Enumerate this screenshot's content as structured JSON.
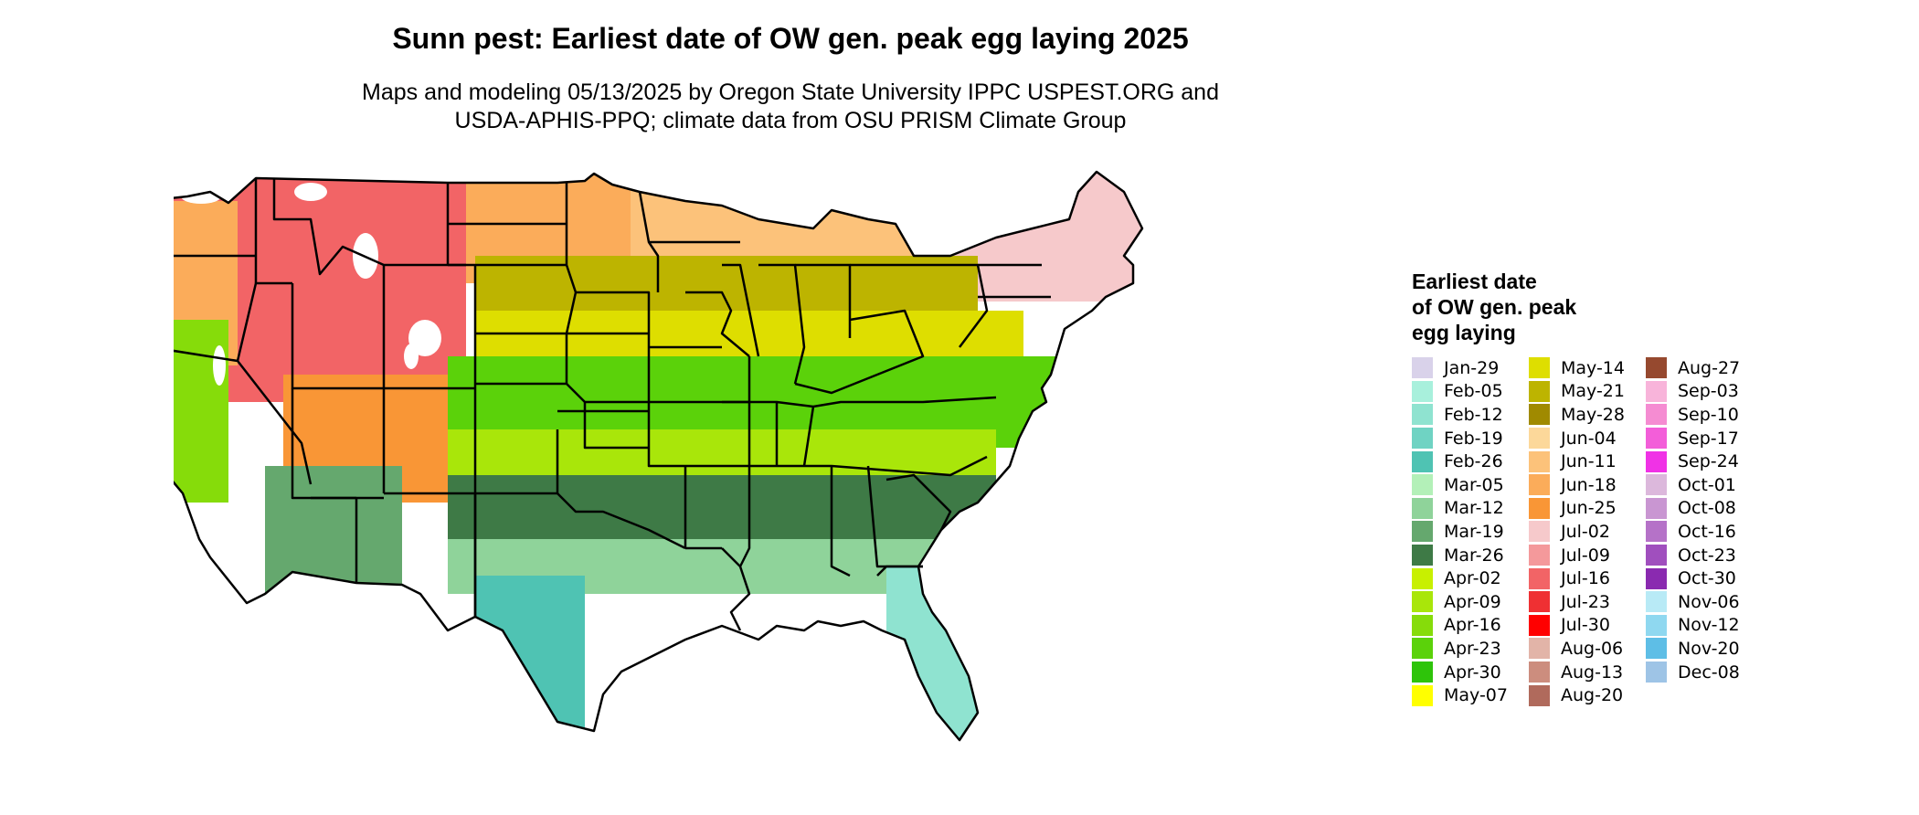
{
  "title": "Sunn pest: Earliest date of OW gen. peak egg laying 2025",
  "subtitle": {
    "line1": "Maps and modeling 05/13/2025 by Oregon State University IPPC USPEST.ORG and",
    "line2": "USDA-APHIS-PPQ; climate data from OSU PRISM Climate Group"
  },
  "legend": {
    "title_lines": [
      "Earliest date",
      "of OW gen. peak",
      "egg laying"
    ],
    "columns": [
      [
        {
          "label": "Jan-29",
          "color": "#d9d2ea"
        },
        {
          "label": "Feb-05",
          "color": "#a8f0dc"
        },
        {
          "label": "Feb-12",
          "color": "#8fe3d0"
        },
        {
          "label": "Feb-19",
          "color": "#6fd3c3"
        },
        {
          "label": "Feb-26",
          "color": "#4fc3b3"
        },
        {
          "label": "Mar-05",
          "color": "#b3f0b8"
        },
        {
          "label": "Mar-12",
          "color": "#8fd39a"
        },
        {
          "label": "Mar-19",
          "color": "#65a86e"
        },
        {
          "label": "Mar-26",
          "color": "#3e7a46"
        },
        {
          "label": "Apr-02",
          "color": "#c8f000"
        },
        {
          "label": "Apr-09",
          "color": "#a9e60a"
        },
        {
          "label": "Apr-16",
          "color": "#86dc0a"
        },
        {
          "label": "Apr-23",
          "color": "#5bd20a"
        },
        {
          "label": "Apr-30",
          "color": "#2ec40a"
        },
        {
          "label": "May-07",
          "color": "#ffff00"
        }
      ],
      [
        {
          "label": "May-14",
          "color": "#dede00"
        },
        {
          "label": "May-21",
          "color": "#bdb400"
        },
        {
          "label": "May-28",
          "color": "#a08a00"
        },
        {
          "label": "Jun-04",
          "color": "#fcd89a"
        },
        {
          "label": "Jun-11",
          "color": "#fcc27a"
        },
        {
          "label": "Jun-18",
          "color": "#fbac5a"
        },
        {
          "label": "Jun-25",
          "color": "#f99636"
        },
        {
          "label": "Jul-02",
          "color": "#f6c9cb"
        },
        {
          "label": "Jul-09",
          "color": "#f4999b"
        },
        {
          "label": "Jul-16",
          "color": "#f26466"
        },
        {
          "label": "Jul-23",
          "color": "#ef3033"
        },
        {
          "label": "Jul-30",
          "color": "#ff0000"
        },
        {
          "label": "Aug-06",
          "color": "#e2b4a8"
        },
        {
          "label": "Aug-13",
          "color": "#cc8d7e"
        },
        {
          "label": "Aug-20",
          "color": "#b06a5c"
        }
      ],
      [
        {
          "label": "Aug-27",
          "color": "#96492f"
        },
        {
          "label": "Sep-03",
          "color": "#f8b4da"
        },
        {
          "label": "Sep-10",
          "color": "#f58cd2"
        },
        {
          "label": "Sep-17",
          "color": "#f35ed9"
        },
        {
          "label": "Sep-24",
          "color": "#f032e6"
        },
        {
          "label": "Oct-01",
          "color": "#dcb8dc"
        },
        {
          "label": "Oct-08",
          "color": "#c996d2"
        },
        {
          "label": "Oct-16",
          "color": "#b572c8"
        },
        {
          "label": "Oct-23",
          "color": "#a04fbe"
        },
        {
          "label": "Oct-30",
          "color": "#8a2ab0"
        },
        {
          "label": "Nov-06",
          "color": "#b8eaf6"
        },
        {
          "label": "Nov-12",
          "color": "#8fd8f0"
        },
        {
          "label": "Nov-20",
          "color": "#5ebee6"
        },
        {
          "label": "Dec-08",
          "color": "#9ec4e6"
        }
      ]
    ]
  },
  "map_colors": {
    "north": "#fbac5a",
    "mountain": "#f26466",
    "snow": "#ffffff",
    "midwest": "#bdb400",
    "central": "#dede00",
    "south": "#5bd20a",
    "gulf": "#3e7a46",
    "coast": "#8fd39a",
    "florida": "#8fe3d0",
    "texas_south": "#4fc3b3",
    "outline": "#000000"
  }
}
